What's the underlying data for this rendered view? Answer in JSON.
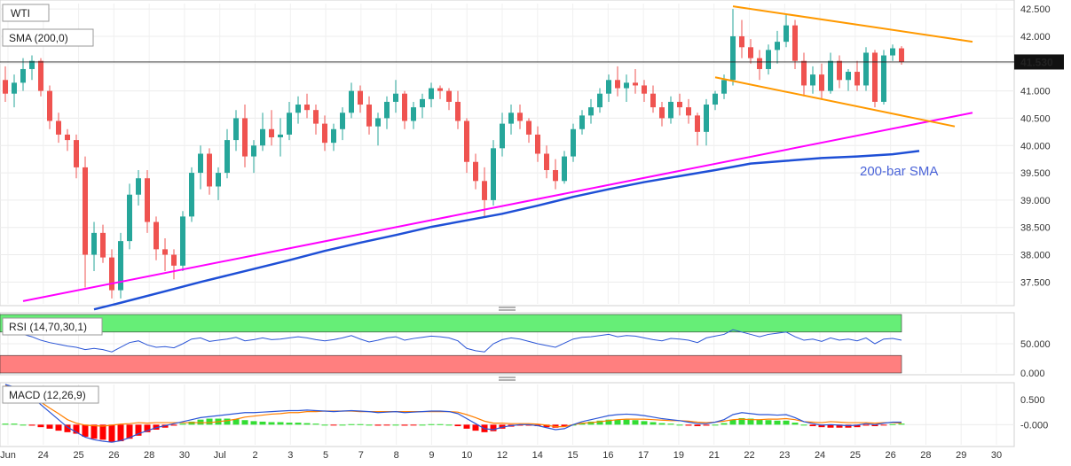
{
  "header": {
    "symbol": "WTI",
    "sma_label": "SMA (200,0)",
    "rsi_label": "RSI (14,70,30,1)",
    "macd_label": "MACD (12,26,9)",
    "sma_annotation": "200-bar SMA",
    "last_price": "41.530"
  },
  "colors": {
    "bull": "#26a69a",
    "bear": "#ef5350",
    "sma": "#1e4fd6",
    "trend": "#ff00ff",
    "channel": "#ff9900",
    "rsi_line": "#2b55d6",
    "rsi_over": "#66ee77",
    "rsi_under": "#ff7f7f",
    "macd_line": "#2b55d6",
    "signal_line": "#ff7f00"
  },
  "chart_data": [
    {
      "type": "candlestick",
      "ylim": [
        37.1,
        42.6
      ],
      "y_ticks": [
        "42.500",
        "42.000",
        "41.500",
        "41.000",
        "40.500",
        "40.000",
        "39.500",
        "39.000",
        "38.500",
        "38.000",
        "37.500"
      ],
      "x_ticks": [
        "Jun",
        "24",
        "25",
        "26",
        "28",
        "30",
        "Jul",
        "2",
        "3",
        "5",
        "7",
        "8",
        "9",
        "10",
        "12",
        "14",
        "15",
        "16",
        "17",
        "19",
        "21",
        "22",
        "23",
        "24",
        "25",
        "26",
        "28",
        "29",
        "30"
      ],
      "last_price": 41.53,
      "ohlc": [
        [
          41.2,
          41.45,
          40.8,
          40.95
        ],
        [
          40.95,
          41.3,
          40.7,
          41.15
        ],
        [
          41.15,
          41.6,
          41.0,
          41.4
        ],
        [
          41.4,
          41.65,
          41.2,
          41.55
        ],
        [
          41.55,
          41.6,
          40.9,
          41.0
        ],
        [
          41.0,
          41.1,
          40.3,
          40.45
        ],
        [
          40.45,
          40.6,
          40.05,
          40.2
        ],
        [
          40.2,
          40.3,
          39.9,
          40.1
        ],
        [
          40.1,
          40.2,
          39.4,
          39.6
        ],
        [
          39.6,
          39.8,
          37.4,
          38.0
        ],
        [
          38.0,
          38.6,
          37.7,
          38.4
        ],
        [
          38.4,
          38.55,
          37.85,
          37.95
        ],
        [
          37.95,
          38.1,
          37.2,
          37.35
        ],
        [
          37.35,
          38.4,
          37.2,
          38.25
        ],
        [
          38.25,
          39.3,
          38.1,
          39.1
        ],
        [
          39.1,
          39.55,
          38.9,
          39.4
        ],
        [
          39.4,
          39.55,
          38.4,
          38.6
        ],
        [
          38.6,
          38.7,
          37.9,
          38.1
        ],
        [
          38.1,
          38.3,
          37.7,
          38.0
        ],
        [
          38.0,
          38.1,
          37.55,
          37.8
        ],
        [
          37.8,
          38.8,
          37.7,
          38.7
        ],
        [
          38.7,
          39.6,
          38.6,
          39.5
        ],
        [
          39.5,
          40.0,
          39.2,
          39.85
        ],
        [
          39.85,
          39.95,
          39.1,
          39.25
        ],
        [
          39.25,
          39.6,
          39.0,
          39.5
        ],
        [
          39.5,
          40.3,
          39.4,
          40.1
        ],
        [
          40.1,
          40.65,
          39.9,
          40.5
        ],
        [
          40.5,
          40.75,
          39.6,
          39.8
        ],
        [
          39.8,
          40.1,
          39.5,
          40.0
        ],
        [
          40.0,
          40.6,
          39.9,
          40.3
        ],
        [
          40.3,
          40.65,
          40.0,
          40.15
        ],
        [
          40.15,
          40.5,
          39.8,
          40.2
        ],
        [
          40.2,
          40.8,
          40.1,
          40.6
        ],
        [
          40.6,
          40.9,
          40.4,
          40.75
        ],
        [
          40.75,
          40.95,
          40.5,
          40.65
        ],
        [
          40.65,
          40.75,
          40.2,
          40.4
        ],
        [
          40.4,
          40.55,
          39.9,
          40.05
        ],
        [
          40.05,
          40.4,
          39.9,
          40.3
        ],
        [
          40.3,
          40.7,
          40.1,
          40.6
        ],
        [
          40.6,
          41.15,
          40.5,
          41.0
        ],
        [
          41.0,
          41.1,
          40.6,
          40.75
        ],
        [
          40.75,
          40.9,
          40.2,
          40.35
        ],
        [
          40.35,
          40.6,
          40.0,
          40.5
        ],
        [
          40.5,
          40.9,
          40.3,
          40.8
        ],
        [
          40.8,
          41.2,
          40.6,
          40.95
        ],
        [
          40.95,
          41.0,
          40.3,
          40.45
        ],
        [
          40.45,
          40.8,
          40.3,
          40.7
        ],
        [
          40.7,
          40.95,
          40.5,
          40.85
        ],
        [
          40.85,
          41.15,
          40.7,
          41.05
        ],
        [
          41.05,
          41.1,
          40.85,
          41.0
        ],
        [
          41.0,
          41.05,
          40.65,
          40.8
        ],
        [
          40.8,
          41.0,
          40.3,
          40.45
        ],
        [
          40.45,
          40.5,
          39.5,
          39.7
        ],
        [
          39.7,
          39.85,
          39.2,
          39.35
        ],
        [
          39.35,
          39.6,
          38.7,
          39.0
        ],
        [
          39.0,
          40.1,
          38.9,
          39.95
        ],
        [
          39.95,
          40.6,
          39.8,
          40.4
        ],
        [
          40.4,
          40.75,
          40.2,
          40.6
        ],
        [
          40.6,
          40.75,
          40.3,
          40.45
        ],
        [
          40.45,
          40.5,
          40.05,
          40.2
        ],
        [
          40.2,
          40.35,
          39.7,
          39.85
        ],
        [
          39.85,
          40.0,
          39.4,
          39.55
        ],
        [
          39.55,
          39.75,
          39.2,
          39.35
        ],
        [
          39.35,
          39.9,
          39.3,
          39.8
        ],
        [
          39.8,
          40.4,
          39.7,
          40.3
        ],
        [
          40.3,
          40.65,
          40.2,
          40.55
        ],
        [
          40.55,
          40.85,
          40.4,
          40.7
        ],
        [
          40.7,
          41.05,
          40.6,
          40.95
        ],
        [
          40.95,
          41.3,
          40.8,
          41.2
        ],
        [
          41.2,
          41.45,
          40.9,
          41.05
        ],
        [
          41.05,
          41.3,
          40.8,
          41.15
        ],
        [
          41.15,
          41.4,
          40.95,
          41.1
        ],
        [
          41.1,
          41.2,
          40.8,
          40.95
        ],
        [
          40.95,
          41.1,
          40.6,
          40.7
        ],
        [
          40.7,
          40.8,
          40.35,
          40.5
        ],
        [
          40.5,
          40.9,
          40.4,
          40.8
        ],
        [
          40.8,
          40.95,
          40.55,
          40.7
        ],
        [
          40.7,
          40.85,
          40.4,
          40.55
        ],
        [
          40.55,
          40.6,
          40.0,
          40.25
        ],
        [
          40.25,
          40.85,
          40.0,
          40.75
        ],
        [
          40.75,
          41.0,
          40.65,
          40.95
        ],
        [
          40.95,
          41.3,
          40.85,
          41.2
        ],
        [
          41.2,
          42.5,
          41.1,
          42.0
        ],
        [
          42.0,
          42.3,
          41.6,
          41.8
        ],
        [
          41.8,
          41.95,
          41.5,
          41.6
        ],
        [
          41.6,
          41.75,
          41.2,
          41.4
        ],
        [
          41.4,
          41.85,
          41.3,
          41.75
        ],
        [
          41.75,
          42.1,
          41.5,
          41.9
        ],
        [
          41.9,
          42.4,
          41.8,
          42.2
        ],
        [
          42.2,
          42.3,
          41.4,
          41.55
        ],
        [
          41.55,
          41.7,
          40.9,
          41.1
        ],
        [
          41.1,
          41.45,
          40.95,
          41.3
        ],
        [
          41.3,
          41.5,
          40.85,
          41.0
        ],
        [
          41.0,
          41.7,
          40.95,
          41.55
        ],
        [
          41.55,
          41.65,
          41.05,
          41.2
        ],
        [
          41.2,
          41.4,
          41.0,
          41.35
        ],
        [
          41.35,
          41.55,
          41.0,
          41.1
        ],
        [
          41.1,
          41.8,
          41.0,
          41.7
        ],
        [
          41.7,
          41.75,
          40.7,
          40.8
        ],
        [
          40.8,
          41.75,
          40.75,
          41.65
        ],
        [
          41.65,
          41.85,
          41.55,
          41.78
        ],
        [
          41.78,
          41.82,
          41.48,
          41.53
        ]
      ],
      "sma_200": [
        [
          10,
          37.0
        ],
        [
          13,
          37.12
        ],
        [
          18,
          37.33
        ],
        [
          22,
          37.5
        ],
        [
          25,
          37.62
        ],
        [
          28,
          37.74
        ],
        [
          32,
          37.9
        ],
        [
          36,
          38.07
        ],
        [
          40,
          38.22
        ],
        [
          44,
          38.36
        ],
        [
          48,
          38.51
        ],
        [
          52,
          38.63
        ],
        [
          56,
          38.75
        ],
        [
          60,
          38.9
        ],
        [
          64,
          39.06
        ],
        [
          68,
          39.2
        ],
        [
          72,
          39.33
        ],
        [
          76,
          39.44
        ],
        [
          80,
          39.55
        ],
        [
          84,
          39.67
        ],
        [
          88,
          39.72
        ],
        [
          92,
          39.77
        ],
        [
          96,
          39.8
        ],
        [
          100,
          39.84
        ],
        [
          103,
          39.9
        ]
      ],
      "trendline": [
        [
          2,
          37.15
        ],
        [
          109,
          40.6
        ]
      ],
      "channel_upper": [
        [
          82,
          42.55
        ],
        [
          109,
          41.9
        ]
      ],
      "channel_lower": [
        [
          80,
          41.25
        ],
        [
          107,
          40.35
        ]
      ],
      "annotation": "200-bar SMA"
    },
    {
      "type": "line",
      "name": "RSI (14,70,30,1)",
      "ylim": [
        0,
        100
      ],
      "y_ticks": [
        "50.000",
        "0.000"
      ],
      "overbought": 70,
      "oversold": 30,
      "values": [
        74,
        70,
        66,
        62,
        56,
        52,
        49,
        46,
        44,
        40,
        42,
        40,
        36,
        44,
        52,
        55,
        48,
        44,
        45,
        43,
        50,
        58,
        60,
        54,
        56,
        58,
        61,
        55,
        57,
        60,
        57,
        58,
        60,
        62,
        60,
        57,
        55,
        57,
        60,
        64,
        58,
        53,
        56,
        60,
        62,
        56,
        59,
        61,
        63,
        62,
        60,
        55,
        42,
        38,
        36,
        50,
        57,
        60,
        58,
        54,
        50,
        47,
        44,
        51,
        58,
        61,
        62,
        64,
        66,
        62,
        64,
        63,
        60,
        57,
        55,
        59,
        58,
        56,
        52,
        60,
        63,
        66,
        74,
        70,
        66,
        62,
        66,
        68,
        70,
        62,
        56,
        58,
        54,
        60,
        56,
        58,
        55,
        60,
        50,
        58,
        59,
        56
      ]
    },
    {
      "type": "bar",
      "name": "MACD (12,26,9)",
      "ylim": [
        -0.4,
        0.8
      ],
      "y_ticks": [
        "0.500",
        "-0.000"
      ],
      "histogram": [
        0.02,
        0.02,
        0.0,
        -0.02,
        -0.05,
        -0.08,
        -0.12,
        -0.15,
        -0.18,
        -0.24,
        -0.28,
        -0.3,
        -0.34,
        -0.33,
        -0.28,
        -0.22,
        -0.15,
        -0.1,
        -0.06,
        -0.02,
        0.02,
        0.06,
        0.1,
        0.12,
        0.12,
        0.12,
        0.11,
        0.09,
        0.07,
        0.06,
        0.05,
        0.05,
        0.04,
        0.04,
        0.03,
        0.02,
        0.0,
        -0.01,
        0.0,
        0.01,
        0.01,
        0.0,
        -0.02,
        -0.01,
        0.0,
        -0.02,
        -0.01,
        0.0,
        0.01,
        0.01,
        0.0,
        -0.03,
        -0.08,
        -0.12,
        -0.15,
        -0.13,
        -0.08,
        -0.04,
        -0.02,
        -0.02,
        -0.03,
        -0.05,
        -0.06,
        -0.04,
        0.0,
        0.03,
        0.06,
        0.08,
        0.1,
        0.1,
        0.1,
        0.09,
        0.07,
        0.05,
        0.03,
        0.02,
        0.0,
        -0.02,
        -0.03,
        -0.02,
        0.0,
        0.03,
        0.1,
        0.13,
        0.12,
        0.1,
        0.09,
        0.08,
        0.08,
        0.04,
        0.0,
        -0.03,
        -0.05,
        -0.06,
        -0.06,
        -0.06,
        -0.05,
        -0.02,
        -0.03,
        -0.01,
        0.01,
        0.02
      ],
      "macd": [
        0.8,
        0.75,
        0.65,
        0.55,
        0.4,
        0.25,
        0.1,
        -0.05,
        -0.15,
        -0.25,
        -0.3,
        -0.33,
        -0.35,
        -0.32,
        -0.26,
        -0.18,
        -0.12,
        -0.06,
        -0.02,
        0.02,
        0.06,
        0.1,
        0.14,
        0.16,
        0.18,
        0.2,
        0.22,
        0.24,
        0.24,
        0.25,
        0.26,
        0.27,
        0.28,
        0.28,
        0.29,
        0.28,
        0.27,
        0.26,
        0.27,
        0.28,
        0.27,
        0.26,
        0.24,
        0.25,
        0.26,
        0.24,
        0.25,
        0.26,
        0.27,
        0.27,
        0.26,
        0.22,
        0.12,
        0.02,
        -0.08,
        -0.1,
        -0.05,
        -0.02,
        0.0,
        0.0,
        -0.02,
        -0.06,
        -0.1,
        -0.08,
        0.0,
        0.06,
        0.1,
        0.14,
        0.18,
        0.2,
        0.21,
        0.2,
        0.18,
        0.15,
        0.12,
        0.1,
        0.08,
        0.05,
        0.02,
        0.02,
        0.05,
        0.1,
        0.2,
        0.24,
        0.22,
        0.2,
        0.2,
        0.19,
        0.2,
        0.14,
        0.06,
        0.02,
        -0.01,
        0.0,
        -0.01,
        -0.02,
        -0.01,
        0.02,
        0.0,
        0.03,
        0.05,
        0.05
      ],
      "signal": [
        0.78,
        0.73,
        0.65,
        0.57,
        0.45,
        0.33,
        0.22,
        0.1,
        0.03,
        -0.01,
        -0.02,
        -0.03,
        -0.01,
        0.01,
        0.02,
        0.04,
        0.03,
        0.04,
        0.04,
        0.04,
        0.04,
        0.04,
        0.04,
        0.04,
        0.06,
        0.08,
        0.11,
        0.15,
        0.17,
        0.19,
        0.21,
        0.22,
        0.24,
        0.24,
        0.26,
        0.26,
        0.27,
        0.27,
        0.27,
        0.27,
        0.26,
        0.26,
        0.26,
        0.26,
        0.26,
        0.26,
        0.26,
        0.26,
        0.26,
        0.26,
        0.26,
        0.25,
        0.2,
        0.14,
        0.07,
        0.03,
        0.03,
        0.02,
        0.02,
        0.02,
        0.01,
        -0.01,
        -0.04,
        -0.04,
        0.0,
        0.03,
        0.04,
        0.06,
        0.08,
        0.1,
        0.11,
        0.11,
        0.11,
        0.1,
        0.09,
        0.08,
        0.08,
        0.07,
        0.05,
        0.04,
        0.05,
        0.07,
        0.1,
        0.11,
        0.1,
        0.1,
        0.11,
        0.11,
        0.12,
        0.1,
        0.06,
        0.05,
        0.04,
        0.06,
        0.05,
        0.04,
        0.04,
        0.04,
        0.03,
        0.04,
        0.04,
        0.03
      ]
    }
  ]
}
